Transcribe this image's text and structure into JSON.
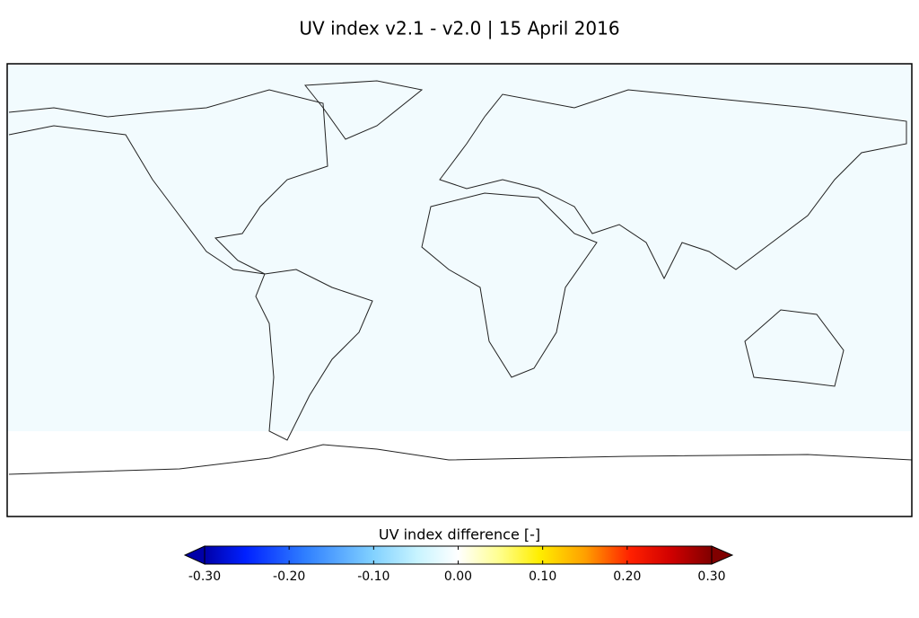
{
  "title": "UV index v2.1 - v2.0  |  15 April 2016",
  "colorbar": {
    "label": "UV index difference  [-]",
    "lim": [
      -0.3,
      0.3
    ],
    "ticks": [
      {
        "value": -0.3,
        "label": "-0.30"
      },
      {
        "value": -0.2,
        "label": "-0.20"
      },
      {
        "value": -0.1,
        "label": "-0.10"
      },
      {
        "value": 0,
        "label": "0.00"
      },
      {
        "value": 0.1,
        "label": "0.10"
      },
      {
        "value": 0.2,
        "label": "0.20"
      },
      {
        "value": 0.3,
        "label": "0.30"
      }
    ]
  }
}
